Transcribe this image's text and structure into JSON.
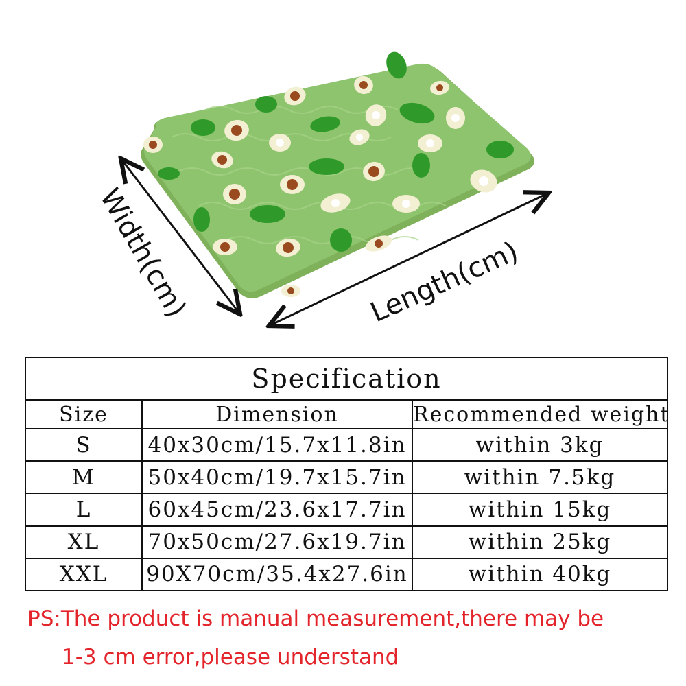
{
  "illustration": {
    "width_label": "Width(cm)",
    "length_label": "Length(cm)",
    "mat_color": "#8fc46e",
    "leaf_color": "#2f9a2a"
  },
  "table": {
    "title": "Specification",
    "headers": [
      "Size",
      "Dimension",
      "Recommended weight"
    ],
    "rows": [
      [
        "S",
        "40x30cm/15.7x11.8in",
        "within 3kg"
      ],
      [
        "M",
        "50x40cm/19.7x15.7in",
        "within 7.5kg"
      ],
      [
        "L",
        "60x45cm/23.6x17.7in",
        "within 15kg"
      ],
      [
        "XL",
        "70x50cm/27.6x19.7in",
        "within 25kg"
      ],
      [
        "XXL",
        "90X70cm/35.4x27.6in",
        "within 40kg"
      ]
    ]
  },
  "note": {
    "line1": "PS:The product is manual measurement,there may be",
    "line2": "1-3 cm error,please understand",
    "color": "#e3242b"
  }
}
